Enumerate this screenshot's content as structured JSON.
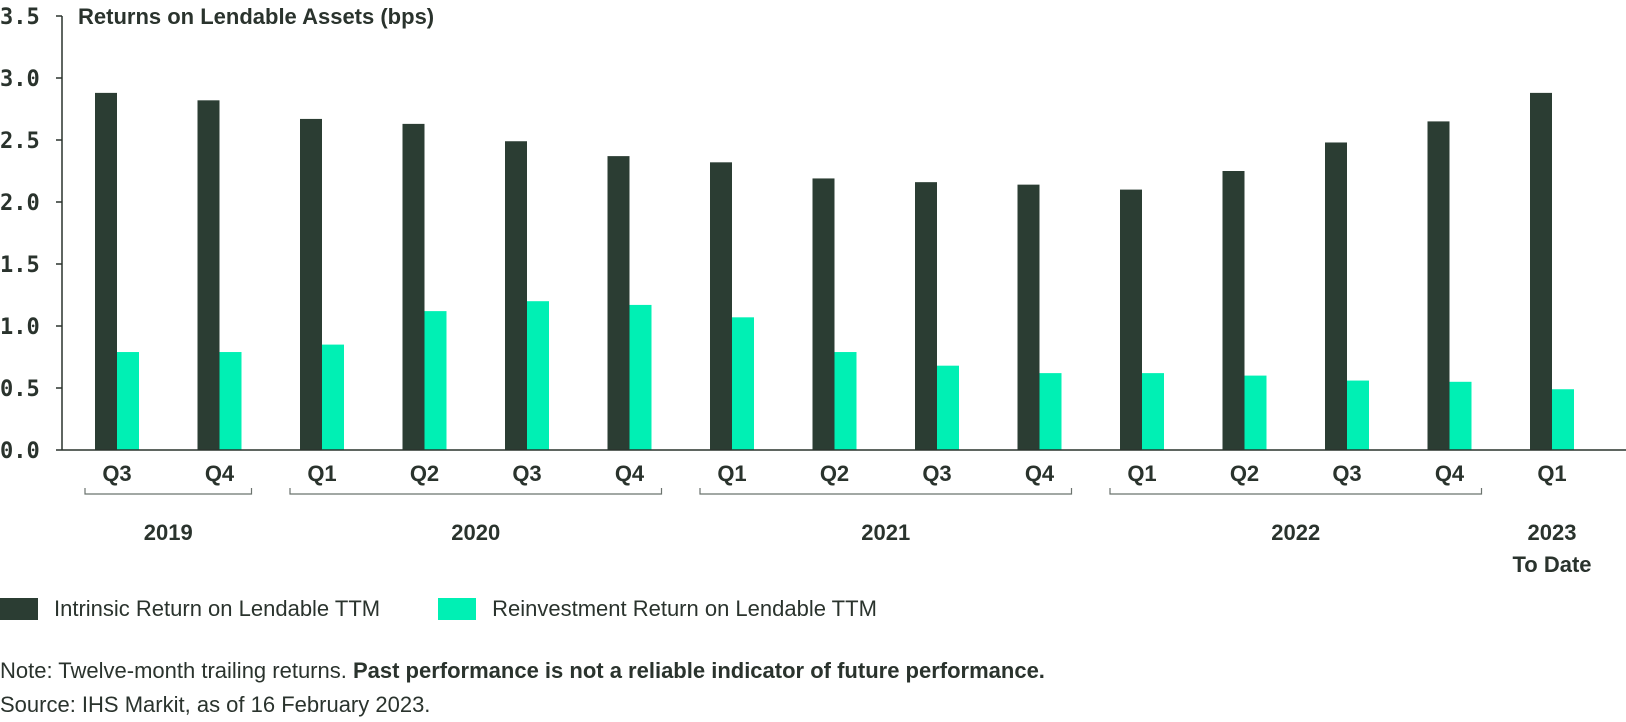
{
  "chart_data": {
    "type": "bar",
    "title": "Returns on Lendable Assets (bps)",
    "categories": [
      "Q3",
      "Q4",
      "Q1",
      "Q2",
      "Q3",
      "Q4",
      "Q1",
      "Q2",
      "Q3",
      "Q4",
      "Q1",
      "Q2",
      "Q3",
      "Q4",
      "Q1"
    ],
    "groups": [
      {
        "label": "2019",
        "start": 0,
        "end": 1
      },
      {
        "label": "2020",
        "start": 2,
        "end": 5
      },
      {
        "label": "2021",
        "start": 6,
        "end": 9
      },
      {
        "label": "2022",
        "start": 10,
        "end": 13
      },
      {
        "label": "2023",
        "label2": "To Date",
        "start": 14,
        "end": 14
      }
    ],
    "series": [
      {
        "name": "Intrinsic Return on Lendable TTM",
        "color": "#2b3d33",
        "values": [
          2.88,
          2.82,
          2.67,
          2.63,
          2.49,
          2.37,
          2.32,
          2.19,
          2.16,
          2.14,
          2.1,
          2.25,
          2.48,
          2.65,
          2.88
        ]
      },
      {
        "name": "Reinvestment Return on Lendable TTM",
        "color": "#00f0b4",
        "values": [
          0.79,
          0.79,
          0.85,
          1.12,
          1.2,
          1.17,
          1.07,
          0.79,
          0.68,
          0.62,
          0.62,
          0.6,
          0.56,
          0.55,
          0.49
        ]
      }
    ],
    "ylim": [
      0,
      3.5
    ],
    "yticks": [
      "0.0",
      "0.5",
      "1.0",
      "1.5",
      "2.0",
      "2.5",
      "3.0",
      "3.5"
    ],
    "legend_position": "bottom-left",
    "grid": false
  },
  "notes": {
    "note_prefix": "Note: Twelve-month trailing returns. ",
    "note_bold": "Past performance is not a reliable indicator of future performance.",
    "source": "Source: IHS Markit, as of 16 February 2023."
  }
}
